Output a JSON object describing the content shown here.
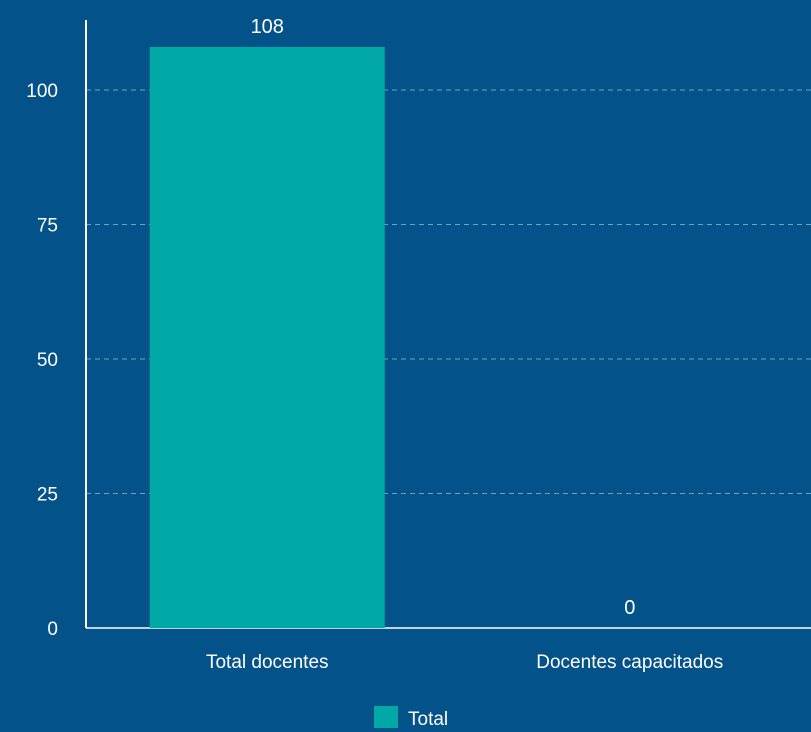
{
  "chart_data": {
    "type": "bar",
    "title": "",
    "xlabel": "",
    "ylabel": "",
    "categories": [
      "Total docentes",
      "Docentes capacitados"
    ],
    "series": [
      {
        "name": "Total",
        "values": [
          108,
          0
        ],
        "color": "#00a9a5"
      }
    ],
    "data_labels": [
      "108",
      "0"
    ],
    "ylim": [
      0,
      110
    ],
    "yticks": [
      0,
      25,
      50,
      75,
      100
    ],
    "ytick_labels": [
      "0",
      "25",
      "50",
      "75",
      "100"
    ],
    "grid": true,
    "grid_style": "dashed",
    "legend_position": "bottom-center",
    "background_color": "#04528a",
    "axis_color": "#ffffff",
    "text_color": "#ffffff"
  }
}
